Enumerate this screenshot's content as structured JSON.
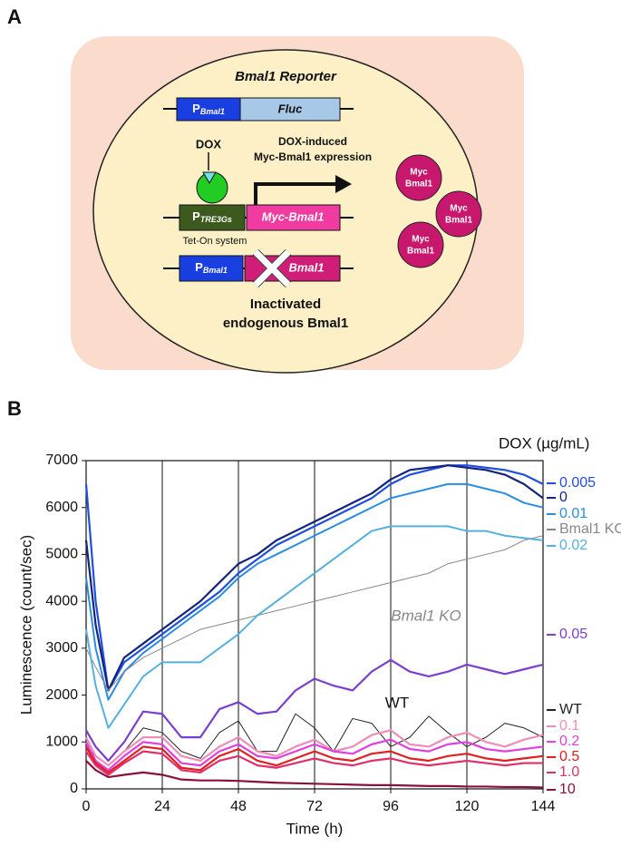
{
  "panel_a": {
    "label": "A",
    "reporter_title": "Bmal1 Reporter",
    "promoter_1": {
      "main": "P",
      "sub": "Bmal1"
    },
    "fluc": "Fluc",
    "dox": "DOX",
    "induced_1": "DOX-induced",
    "induced_2": "Myc-Bmal1 expression",
    "promoter_tre": {
      "main": "P",
      "sub": "TRE3Gs"
    },
    "myc_gene": "Myc-Bmal1",
    "tet_on": "Tet-On system",
    "promoter_2": {
      "main": "P",
      "sub": "Bmal1"
    },
    "bmal1_gene": "Bmal1",
    "inactivated_1": "Inactivated",
    "inactivated_2": "endogenous Bmal1",
    "proteins": [
      {
        "top": "Myc",
        "bottom": "Bmal1"
      },
      {
        "top": "Myc",
        "bottom": "Bmal1"
      },
      {
        "top": "Myc",
        "bottom": "Bmal1"
      }
    ]
  },
  "chart_data": {
    "type": "line",
    "panel_label": "B",
    "legend_title": "DOX (µg/mL)",
    "x_label": "Time (h)",
    "y_label": "Luminescence (count/sec)",
    "xlim": [
      0,
      144
    ],
    "xticks": [
      0,
      24,
      48,
      72,
      96,
      120,
      144
    ],
    "ylim": [
      0,
      7000
    ],
    "yticks": [
      0,
      1000,
      2000,
      3000,
      4000,
      5000,
      6000,
      7000
    ],
    "grid": "x",
    "annotations": [
      "Bmal1 KO",
      "WT"
    ],
    "x": [
      0,
      3,
      7,
      12,
      18,
      24,
      30,
      36,
      42,
      48,
      54,
      60,
      66,
      72,
      78,
      84,
      90,
      96,
      102,
      108,
      114,
      120,
      126,
      132,
      138,
      144
    ],
    "series": [
      {
        "name": "0.005",
        "color": "#1f4fe0",
        "width": 2.2,
        "values": [
          6500,
          4000,
          2100,
          2700,
          3000,
          3300,
          3600,
          3900,
          4200,
          4600,
          4900,
          5200,
          5400,
          5600,
          5800,
          6000,
          6200,
          6500,
          6700,
          6800,
          6900,
          6900,
          6850,
          6800,
          6700,
          6500
        ]
      },
      {
        "name": "0",
        "color": "#14237e",
        "width": 2.2,
        "values": [
          5300,
          3500,
          2100,
          2800,
          3100,
          3400,
          3700,
          4000,
          4400,
          4800,
          5000,
          5300,
          5500,
          5700,
          5900,
          6100,
          6300,
          6600,
          6800,
          6850,
          6900,
          6850,
          6800,
          6700,
          6500,
          6200
        ]
      },
      {
        "name": "0.01",
        "color": "#2a8de0",
        "width": 2,
        "values": [
          4500,
          3000,
          1900,
          2500,
          2900,
          3200,
          3500,
          3800,
          4100,
          4500,
          4800,
          5000,
          5200,
          5400,
          5600,
          5800,
          6000,
          6200,
          6300,
          6400,
          6500,
          6500,
          6400,
          6300,
          6100,
          6000
        ]
      },
      {
        "name": "Bmal1 KO",
        "color": "#888888",
        "width": 1,
        "values": [
          3000,
          2600,
          2100,
          2500,
          2800,
          3000,
          3200,
          3400,
          3500,
          3600,
          3700,
          3800,
          3900,
          4000,
          4100,
          4200,
          4300,
          4400,
          4500,
          4600,
          4800,
          4900,
          5000,
          5100,
          5300,
          5400
        ]
      },
      {
        "name": "0.02",
        "color": "#55b0e0",
        "width": 2,
        "values": [
          3400,
          2200,
          1300,
          1800,
          2400,
          2700,
          2700,
          2700,
          3000,
          3300,
          3700,
          4000,
          4300,
          4600,
          4900,
          5200,
          5500,
          5600,
          5600,
          5600,
          5600,
          5500,
          5500,
          5400,
          5350,
          5300
        ]
      },
      {
        "name": "0.05",
        "color": "#7b3fd0",
        "width": 2.2,
        "values": [
          1250,
          900,
          600,
          1000,
          1650,
          1600,
          1100,
          1100,
          1700,
          1850,
          1600,
          1650,
          2100,
          2350,
          2200,
          2100,
          2500,
          2750,
          2500,
          2400,
          2500,
          2650,
          2550,
          2450,
          2550,
          2650
        ]
      },
      {
        "name": "WT",
        "color": "#222222",
        "width": 1,
        "values": [
          900,
          700,
          500,
          800,
          1300,
          1200,
          800,
          650,
          1200,
          1450,
          800,
          800,
          1600,
          1300,
          800,
          1500,
          1400,
          900,
          1100,
          1550,
          1200,
          900,
          1100,
          1400,
          1300,
          1100
        ]
      },
      {
        "name": "0.1",
        "color": "#f08cb8",
        "width": 2.2,
        "values": [
          1100,
          700,
          500,
          800,
          1100,
          1100,
          700,
          600,
          900,
          1100,
          800,
          700,
          900,
          1050,
          800,
          900,
          1150,
          1250,
          950,
          900,
          1100,
          1200,
          1000,
          900,
          1050,
          1150
        ]
      },
      {
        "name": "0.2",
        "color": "#e040e0",
        "width": 2.2,
        "values": [
          1000,
          600,
          400,
          700,
          1000,
          950,
          550,
          500,
          800,
          950,
          700,
          650,
          800,
          950,
          800,
          750,
          950,
          1050,
          850,
          800,
          950,
          1000,
          850,
          800,
          850,
          900
        ]
      },
      {
        "name": "0.5",
        "color": "#e02020",
        "width": 2.2,
        "values": [
          900,
          550,
          350,
          600,
          900,
          850,
          450,
          400,
          700,
          850,
          600,
          500,
          650,
          800,
          650,
          600,
          750,
          800,
          650,
          600,
          700,
          750,
          650,
          600,
          650,
          700
        ]
      },
      {
        "name": "1.0",
        "color": "#e0306a",
        "width": 2.2,
        "values": [
          800,
          500,
          300,
          550,
          800,
          750,
          400,
          350,
          600,
          700,
          500,
          450,
          550,
          650,
          550,
          500,
          600,
          650,
          550,
          500,
          550,
          600,
          550,
          500,
          550,
          550
        ]
      },
      {
        "name": "10",
        "color": "#8b1040",
        "width": 2.2,
        "values": [
          600,
          400,
          250,
          300,
          350,
          300,
          200,
          180,
          180,
          170,
          150,
          130,
          120,
          110,
          100,
          90,
          80,
          80,
          70,
          60,
          60,
          50,
          50,
          40,
          40,
          30
        ]
      }
    ]
  }
}
